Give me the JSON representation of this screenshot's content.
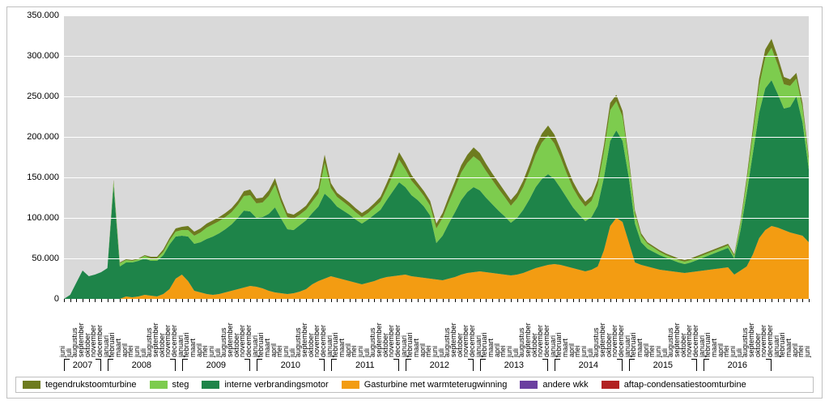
{
  "chart": {
    "type": "stacked-area",
    "background_color": "#ffffff",
    "plot_background_color": "#d9d9d9",
    "grid_color": "#ffffff",
    "axis_font_size": 11,
    "tick_font_size": 9,
    "ylim": [
      0,
      350000
    ],
    "ytick_step": 50000,
    "yticks": [
      "0",
      "50.000",
      "100.000",
      "150.000",
      "200.000",
      "250.000",
      "300.000",
      "350.000"
    ],
    "months": [
      "juni",
      "juli",
      "augustus",
      "september",
      "oktober",
      "november",
      "december",
      "januari",
      "februari",
      "maart",
      "april",
      "mei"
    ],
    "years": [
      "2007",
      "2008",
      "2009",
      "2010",
      "2011",
      "2012",
      "2013",
      "2014",
      "2015",
      "2016"
    ],
    "series_order": [
      "aftap",
      "andere",
      "gasturbine",
      "interne",
      "steg",
      "tegendruk"
    ],
    "series": {
      "aftap": {
        "label": "aftap-condensatiestoomturbine",
        "color": "#b22222"
      },
      "andere": {
        "label": "andere wkk",
        "color": "#6b3fa0"
      },
      "gasturbine": {
        "label": "Gasturbine met warmteterugwinning",
        "color": "#f39c12"
      },
      "interne": {
        "label": "interne verbrandingsmotor",
        "color": "#1e8449"
      },
      "steg": {
        "label": "steg",
        "color": "#7dcc4e"
      },
      "tegendruk": {
        "label": "tegendrukstoomturbine",
        "color": "#6e7b1f"
      }
    },
    "legend_order": [
      "tegendruk",
      "steg",
      "interne",
      "gasturbine",
      "andere",
      "aftap"
    ],
    "data": {
      "aftap": [
        0,
        0,
        0,
        0,
        0,
        0,
        0,
        0,
        0,
        0,
        0,
        0,
        0,
        0,
        0,
        0,
        0,
        0,
        0,
        0,
        0,
        0,
        0,
        0,
        0,
        0,
        0,
        0,
        0,
        0,
        0,
        0,
        0,
        0,
        0,
        0,
        0,
        0,
        0,
        0,
        0,
        0,
        0,
        0,
        0,
        0,
        0,
        0,
        0,
        0,
        0,
        0,
        0,
        0,
        0,
        0,
        0,
        0,
        0,
        0,
        0,
        0,
        0,
        0,
        0,
        0,
        0,
        0,
        0,
        0,
        0,
        0,
        0,
        0,
        0,
        0,
        0,
        0,
        0,
        0,
        0,
        0,
        0,
        0,
        0,
        0,
        0,
        0,
        0,
        0,
        0,
        0,
        0,
        0,
        0,
        0,
        0,
        0,
        0,
        0,
        0,
        0,
        0,
        0,
        0,
        0,
        0,
        0,
        0,
        0,
        0,
        0,
        0,
        0,
        0,
        0,
        0,
        0,
        0,
        0,
        0
      ],
      "andere": [
        0,
        0,
        0,
        0,
        0,
        0,
        0,
        0,
        0,
        0,
        0,
        0,
        0,
        0,
        0,
        0,
        0,
        0,
        0,
        0,
        0,
        0,
        0,
        0,
        0,
        0,
        0,
        0,
        0,
        0,
        0,
        0,
        0,
        0,
        0,
        0,
        0,
        0,
        0,
        0,
        0,
        0,
        0,
        0,
        0,
        0,
        0,
        0,
        0,
        0,
        0,
        0,
        0,
        0,
        0,
        0,
        0,
        0,
        0,
        0,
        0,
        0,
        0,
        0,
        0,
        0,
        0,
        0,
        0,
        0,
        0,
        0,
        0,
        0,
        0,
        0,
        0,
        0,
        0,
        0,
        0,
        0,
        0,
        0,
        0,
        0,
        0,
        0,
        0,
        0,
        0,
        0,
        0,
        0,
        0,
        0,
        0,
        0,
        0,
        0,
        0,
        0,
        0,
        0,
        0,
        0,
        0,
        0,
        0,
        0,
        0,
        0,
        0,
        0,
        0,
        0,
        0,
        0,
        0,
        0,
        0
      ],
      "gasturbine": [
        0,
        0,
        0,
        0,
        0,
        0,
        0,
        0,
        0,
        0,
        3000,
        2000,
        3000,
        5000,
        4000,
        3000,
        6000,
        12000,
        25000,
        30000,
        22000,
        10000,
        8000,
        6000,
        5000,
        6000,
        8000,
        10000,
        12000,
        14000,
        16000,
        15000,
        13000,
        10000,
        8000,
        7000,
        6000,
        7000,
        9000,
        12000,
        18000,
        22000,
        25000,
        28000,
        26000,
        24000,
        22000,
        20000,
        18000,
        20000,
        22000,
        25000,
        27000,
        28000,
        29000,
        30000,
        28000,
        27000,
        26000,
        25000,
        24000,
        23000,
        25000,
        27000,
        30000,
        32000,
        33000,
        34000,
        33000,
        32000,
        31000,
        30000,
        29000,
        30000,
        32000,
        35000,
        38000,
        40000,
        42000,
        43000,
        42000,
        40000,
        38000,
        36000,
        34000,
        36000,
        40000,
        60000,
        90000,
        100000,
        95000,
        70000,
        45000,
        42000,
        40000,
        38000,
        36000,
        35000,
        34000,
        33000,
        32000,
        33000,
        34000,
        35000,
        36000,
        37000,
        38000,
        39000,
        30000,
        35000,
        40000,
        55000,
        75000,
        85000,
        90000,
        88000,
        85000,
        82000,
        80000,
        78000,
        70000
      ],
      "interne": [
        0,
        5000,
        20000,
        35000,
        28000,
        30000,
        33000,
        38000,
        140000,
        40000,
        42000,
        43000,
        44000,
        45000,
        43000,
        44000,
        48000,
        55000,
        52000,
        48000,
        55000,
        58000,
        62000,
        68000,
        72000,
        75000,
        78000,
        82000,
        88000,
        95000,
        92000,
        85000,
        88000,
        95000,
        105000,
        92000,
        80000,
        78000,
        82000,
        85000,
        88000,
        92000,
        105000,
        95000,
        88000,
        85000,
        82000,
        78000,
        75000,
        78000,
        82000,
        85000,
        95000,
        105000,
        115000,
        108000,
        100000,
        95000,
        88000,
        78000,
        45000,
        55000,
        68000,
        80000,
        92000,
        100000,
        105000,
        100000,
        92000,
        85000,
        78000,
        72000,
        65000,
        70000,
        78000,
        88000,
        100000,
        108000,
        112000,
        105000,
        95000,
        85000,
        75000,
        68000,
        62000,
        65000,
        75000,
        90000,
        105000,
        108000,
        100000,
        80000,
        48000,
        28000,
        22000,
        20000,
        18000,
        16000,
        14000,
        12000,
        11000,
        12000,
        14000,
        16000,
        18000,
        20000,
        22000,
        24000,
        20000,
        50000,
        90000,
        125000,
        155000,
        175000,
        180000,
        165000,
        150000,
        155000,
        170000,
        140000,
        90000
      ],
      "steg": [
        0,
        0,
        0,
        0,
        0,
        0,
        0,
        0,
        5000,
        4000,
        3000,
        2000,
        2000,
        3000,
        3000,
        3000,
        4000,
        5000,
        6000,
        7000,
        8000,
        10000,
        12000,
        14000,
        15000,
        15000,
        15000,
        15000,
        16000,
        18000,
        20000,
        18000,
        18000,
        22000,
        28000,
        20000,
        15000,
        14000,
        13000,
        13000,
        14000,
        16000,
        38000,
        14000,
        12000,
        11000,
        10000,
        9000,
        8000,
        8000,
        9000,
        10000,
        14000,
        20000,
        28000,
        22000,
        18000,
        15000,
        13000,
        12000,
        18000,
        22000,
        26000,
        30000,
        34000,
        36000,
        38000,
        36000,
        33000,
        30000,
        27000,
        24000,
        21000,
        24000,
        28000,
        34000,
        40000,
        45000,
        48000,
        44000,
        38000,
        30000,
        24000,
        20000,
        18000,
        20000,
        25000,
        32000,
        38000,
        36000,
        30000,
        20000,
        12000,
        8000,
        6000,
        5000,
        4000,
        3000,
        3000,
        3000,
        3000,
        3000,
        3000,
        3000,
        3000,
        3000,
        3000,
        3000,
        3000,
        8000,
        15000,
        24000,
        33000,
        38000,
        40000,
        36000,
        30000,
        26000,
        22000,
        18000,
        12000
      ],
      "tegendruk": [
        0,
        0,
        0,
        0,
        0,
        0,
        0,
        0,
        2000,
        1000,
        1000,
        1000,
        1000,
        1000,
        2000,
        2000,
        3000,
        3000,
        4000,
        4000,
        5000,
        5000,
        5000,
        5000,
        5000,
        5000,
        5000,
        5000,
        5000,
        6000,
        7000,
        6000,
        6000,
        7000,
        8000,
        6000,
        5000,
        5000,
        5000,
        5000,
        6000,
        7000,
        10000,
        6000,
        5000,
        5000,
        5000,
        5000,
        5000,
        5000,
        5000,
        6000,
        7000,
        8000,
        9000,
        8000,
        7000,
        6000,
        6000,
        6000,
        6000,
        6000,
        7000,
        8000,
        9000,
        10000,
        11000,
        10000,
        9000,
        8000,
        8000,
        7000,
        7000,
        7000,
        8000,
        9000,
        10000,
        11000,
        12000,
        11000,
        10000,
        9000,
        8000,
        7000,
        6000,
        6000,
        7000,
        8000,
        9000,
        8000,
        7000,
        5000,
        4000,
        3000,
        2000,
        2000,
        2000,
        2000,
        2000,
        2000,
        2000,
        2000,
        2000,
        2000,
        2000,
        2000,
        2000,
        2000,
        2000,
        3000,
        5000,
        7000,
        9000,
        10000,
        11000,
        10000,
        9000,
        8000,
        7000,
        6000,
        4000
      ]
    }
  }
}
